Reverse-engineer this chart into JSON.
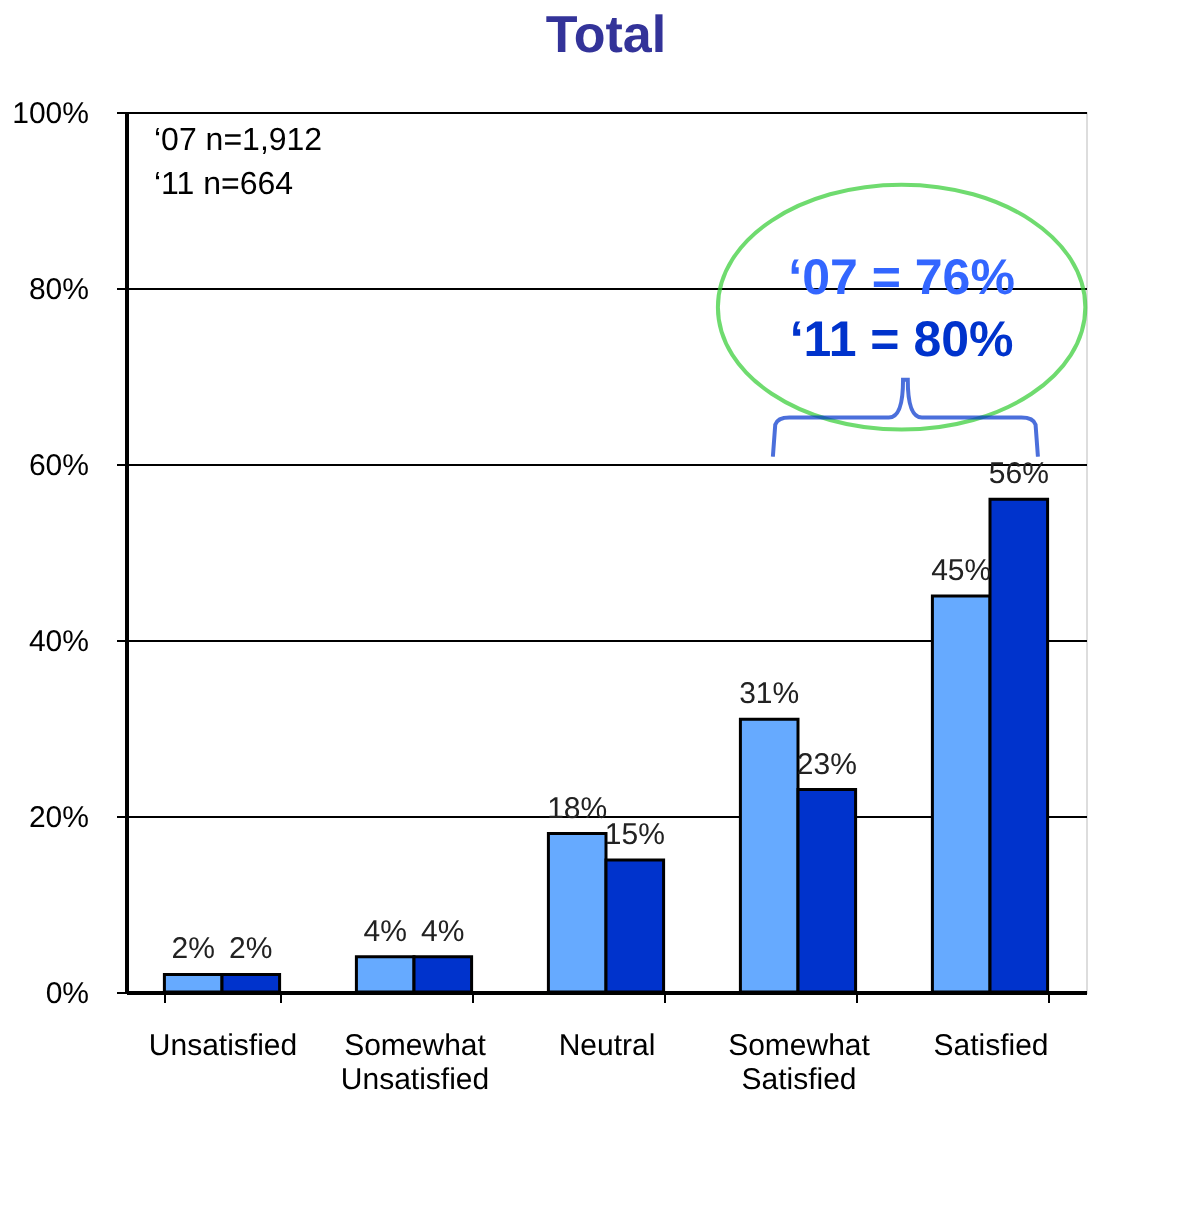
{
  "chart_data": {
    "type": "bar",
    "title": "Total",
    "categories": [
      "Unsatisfied",
      "Somewhat Unsatisfied",
      "Neutral",
      "Somewhat Satisfied",
      "Satisfied"
    ],
    "series": [
      {
        "color": "#66aaff",
        "values": [
          2,
          4,
          18,
          31,
          45
        ],
        "value_labels": [
          "2%",
          "4%",
          "18%",
          "31%",
          "45%"
        ]
      },
      {
        "color": "#0033cc",
        "values": [
          2,
          4,
          15,
          23,
          56
        ],
        "value_labels": [
          "2%",
          "4%",
          "15%",
          "23%",
          "56%"
        ]
      }
    ],
    "ylim": [
      0,
      100
    ],
    "yticks": [
      {
        "value": 0,
        "label": "0%"
      },
      {
        "value": 20,
        "label": "20%"
      },
      {
        "value": 40,
        "label": "40%"
      },
      {
        "value": 60,
        "label": "60%"
      },
      {
        "value": 80,
        "label": "80%"
      },
      {
        "value": 100,
        "label": "100%"
      }
    ],
    "grid": "y",
    "annotations": [
      "‘07 n=1,912",
      "‘11 n=664",
      "‘07 = 76%",
      "‘11 = 80%"
    ]
  }
}
